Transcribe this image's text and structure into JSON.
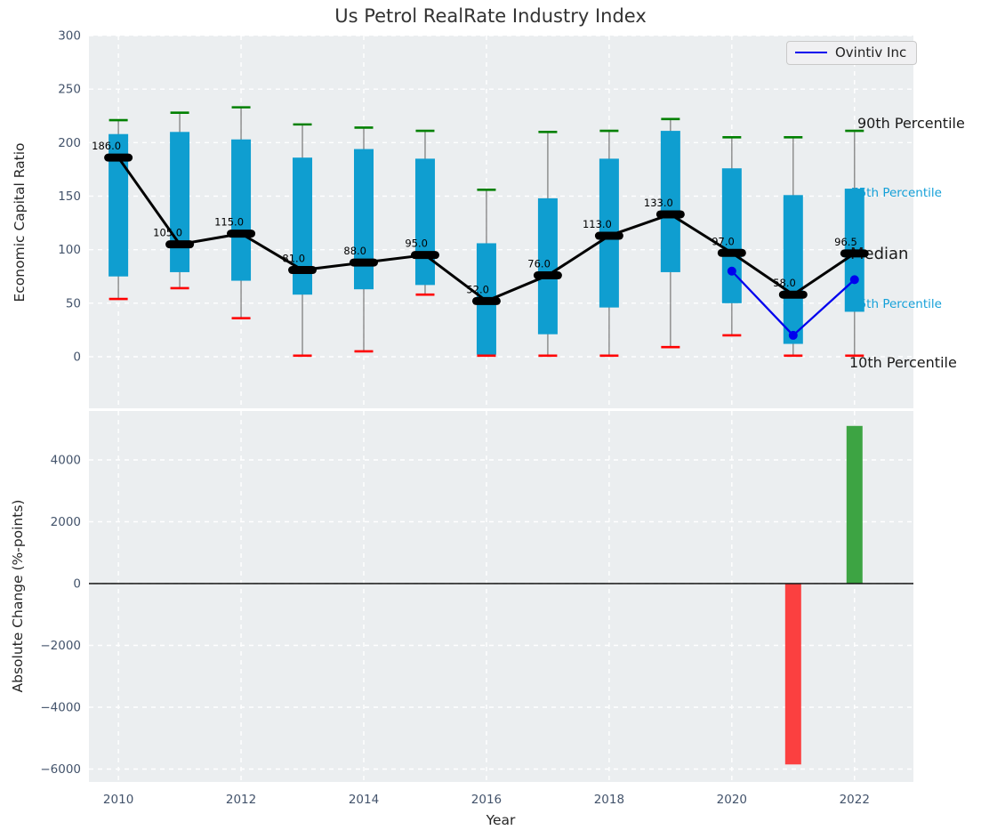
{
  "title": "Us Petrol RealRate Industry Index",
  "legend": {
    "label": "Ovintiv Inc"
  },
  "annotations": {
    "p90": "90th Percentile",
    "p75": "75th Percentile",
    "median": "Median",
    "p25": "25th Percentile",
    "p10": "10th Percentile"
  },
  "colors": {
    "box": "#0f9ed0",
    "p90_cap": "#008000",
    "p10_cap": "#ff0000",
    "median_line": "#000000",
    "company_line": "#0000ee",
    "bar_up": "#3da443",
    "bar_down": "#fb4040",
    "teal_text": "#15a0d8",
    "tick_text": "#43536b",
    "plot_bg": "#ebeef0",
    "grid": "#ffffff",
    "whisker": "#808080"
  },
  "chart_data": [
    {
      "type": "box-percentile-line",
      "ylabel": "Economic Capital Ratio",
      "ylim": [
        -48.2,
        300
      ],
      "xlim": [
        2009.52,
        2022.96
      ],
      "yticks": [
        300,
        250,
        200,
        150,
        100,
        50,
        0
      ],
      "years": [
        2010,
        2011,
        2012,
        2013,
        2014,
        2015,
        2016,
        2017,
        2018,
        2019,
        2020,
        2021,
        2022
      ],
      "p90": [
        221,
        228,
        233,
        217,
        214,
        211,
        156,
        210,
        211,
        222,
        205,
        205,
        211
      ],
      "p75": [
        208,
        210,
        203,
        186,
        194,
        185,
        106,
        148,
        185,
        211,
        176,
        151,
        157
      ],
      "median": [
        186,
        105,
        115,
        81,
        88,
        95,
        52,
        76,
        113,
        133,
        97,
        58,
        96.5
      ],
      "p25": [
        75,
        79,
        71,
        58,
        63,
        67,
        2,
        21,
        46,
        79,
        50,
        12,
        42
      ],
      "p10": [
        54,
        64,
        36,
        1,
        5,
        58,
        1,
        1,
        1,
        9,
        20,
        1,
        1
      ],
      "median_labels": [
        "186.0",
        "105.0",
        "115.0",
        "81.0",
        "88.0",
        "95.0",
        "52.0",
        "76.0",
        "113.0",
        "133.0",
        "97.0",
        "58.0",
        "96.5"
      ],
      "company": {
        "name": "Ovintiv Inc",
        "years": [
          2020,
          2021,
          2022
        ],
        "values": [
          80,
          20,
          72
        ]
      },
      "legend_position": "upper right",
      "grid": true
    },
    {
      "type": "bar",
      "ylabel": "Absolute Change (%-points)",
      "xlabel": "Year",
      "ylim": [
        -6417,
        5583
      ],
      "xlim": [
        2009.52,
        2022.96
      ],
      "yticks": [
        4000,
        2000,
        0,
        -2000,
        -4000,
        -6000
      ],
      "xticks": [
        2010,
        2012,
        2014,
        2016,
        2018,
        2020,
        2022
      ],
      "zero_line": 0,
      "bars": [
        {
          "year": 2021,
          "value": -5850,
          "direction": "down"
        },
        {
          "year": 2022,
          "value": 5100,
          "direction": "up"
        }
      ],
      "grid": true
    }
  ]
}
